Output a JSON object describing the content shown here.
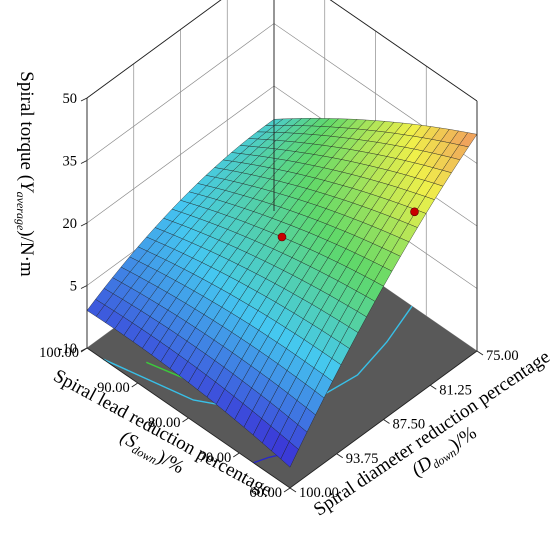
{
  "chart_data": {
    "type": "surface3d",
    "z_axis": {
      "label_prefix": "Spiral torque (",
      "label_symbol": "Y",
      "label_subscript": "average",
      "label_suffix": ")/N·m",
      "ticks": [
        "50",
        "35",
        "20",
        "5",
        "-10"
      ],
      "range": [
        -10,
        50
      ]
    },
    "x_axis": {
      "label_line1": "Spiral lead reduction percentage",
      "label_line2_prefix": "(S",
      "label_line2_subscript": "down",
      "label_line2_suffix": ")/%",
      "ticks": [
        "100.00",
        "90.00",
        "80.00",
        "70.00",
        "60.00"
      ],
      "range": [
        60,
        100
      ]
    },
    "y_axis": {
      "label_line1": "Spiral diameter reduction percentage",
      "label_line2_prefix": "(D",
      "label_line2_subscript": "down",
      "label_line2_suffix": ")/%",
      "ticks": [
        "75.00",
        "81.25",
        "87.50",
        "93.75",
        "100.00"
      ],
      "range": [
        75,
        100
      ]
    },
    "surface_corner_values": {
      "S100_D75": 12,
      "S60_D75": 42,
      "S60_D100": -5,
      "S100_D100": -1
    },
    "design_points": [
      {
        "S": 80,
        "D": 87.5,
        "torque": 20
      },
      {
        "S": 62,
        "D": 82,
        "torque": 47
      }
    ],
    "floor_contours": [
      "blue",
      "cyan",
      "green",
      "yellow",
      "orange"
    ],
    "colormap": [
      "#3b3bd8",
      "#45c8f0",
      "#5fd86a",
      "#f0f04a",
      "#f06a6a"
    ],
    "floor_color": "#595959",
    "point_color": "#c80000"
  }
}
